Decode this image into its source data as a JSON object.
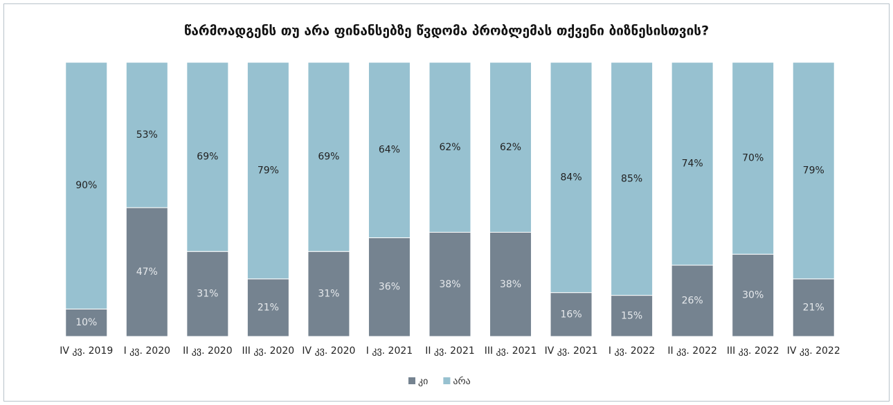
{
  "chart_data": {
    "type": "stacked_bar",
    "title": "წარმოადგენს თუ არა ფინანსებზე წვდომა პრობლემას თქვენი ბიზნესისთვის?",
    "categories": [
      "IV კვ. 2019",
      "I კვ. 2020",
      "II კვ. 2020",
      "III კვ. 2020",
      "IV კვ. 2020",
      "I კვ. 2021",
      "II კვ. 2021",
      "III კვ. 2021",
      "IV კვ. 2021",
      "I კვ. 2022",
      "II კვ. 2022",
      "III კვ. 2022",
      "IV კვ. 2022"
    ],
    "series": [
      {
        "name": "კი",
        "color": "#758390",
        "label_color": "#e6e9ec",
        "values": [
          10,
          47,
          31,
          21,
          31,
          36,
          38,
          38,
          16,
          15,
          26,
          30,
          21
        ],
        "value_labels": [
          "10%",
          "47%",
          "31%",
          "21%",
          "31%",
          "36%",
          "38%",
          "38%",
          "16%",
          "15%",
          "26%",
          "30%",
          "21%"
        ]
      },
      {
        "name": "არა",
        "color": "#97c1d0",
        "label_color": "#222222",
        "values": [
          90,
          53,
          69,
          79,
          69,
          64,
          62,
          62,
          84,
          85,
          74,
          70,
          79
        ],
        "value_labels": [
          "90%",
          "53%",
          "69%",
          "79%",
          "69%",
          "64%",
          "62%",
          "62%",
          "84%",
          "85%",
          "74%",
          "70%",
          "79%"
        ]
      }
    ]
  }
}
